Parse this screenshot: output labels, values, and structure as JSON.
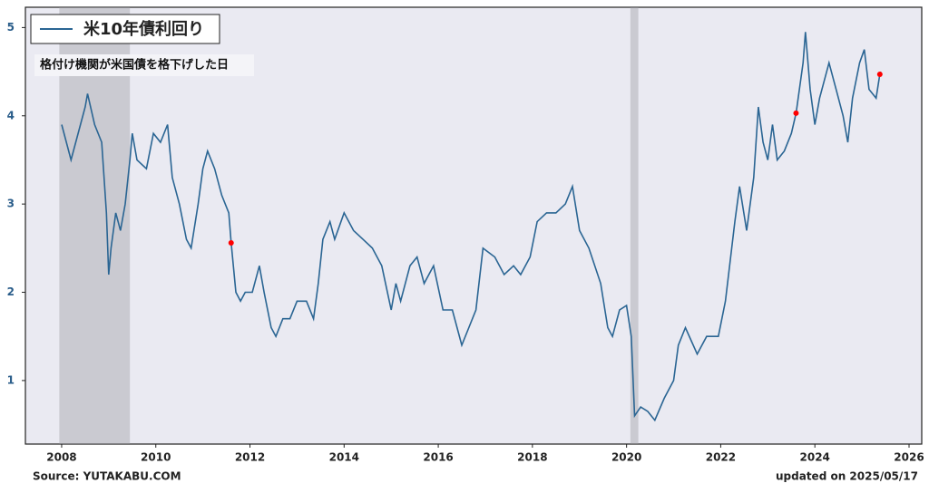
{
  "chart_data": {
    "type": "line",
    "legend": "米10年債利回り",
    "annotation": "格付け機関が米国債を格下げした日",
    "source": "Source: YUTAKABU.COM",
    "updated": "updated on 2025/05/17",
    "xlim": [
      2007.23,
      2026.27
    ],
    "xticks": [
      2008,
      2010,
      2012,
      2014,
      2016,
      2018,
      2020,
      2022,
      2024,
      2026
    ],
    "ylim": [
      0.28,
      5.23
    ],
    "yticks": [
      1,
      2,
      3,
      4,
      5
    ],
    "color": "#2a6593",
    "shaded_ranges": [
      [
        2007.95,
        2009.45
      ],
      [
        2020.08,
        2020.25
      ]
    ],
    "x": [
      2008.0,
      2008.2,
      2008.4,
      2008.5,
      2008.55,
      2008.7,
      2008.85,
      2008.95,
      2009.0,
      2009.05,
      2009.15,
      2009.25,
      2009.35,
      2009.45,
      2009.5,
      2009.6,
      2009.8,
      2009.95,
      2010.1,
      2010.25,
      2010.35,
      2010.5,
      2010.65,
      2010.75,
      2010.9,
      2011.0,
      2011.1,
      2011.25,
      2011.4,
      2011.55,
      2011.6,
      2011.7,
      2011.8,
      2011.9,
      2012.05,
      2012.2,
      2012.3,
      2012.45,
      2012.55,
      2012.7,
      2012.85,
      2013.0,
      2013.2,
      2013.35,
      2013.45,
      2013.55,
      2013.7,
      2013.8,
      2014.0,
      2014.2,
      2014.4,
      2014.6,
      2014.8,
      2015.0,
      2015.1,
      2015.2,
      2015.4,
      2015.55,
      2015.7,
      2015.9,
      2016.1,
      2016.3,
      2016.5,
      2016.65,
      2016.8,
      2016.95,
      2017.2,
      2017.4,
      2017.6,
      2017.75,
      2017.95,
      2018.1,
      2018.3,
      2018.5,
      2018.7,
      2018.85,
      2019.0,
      2019.2,
      2019.45,
      2019.6,
      2019.7,
      2019.85,
      2020.0,
      2020.1,
      2020.17,
      2020.3,
      2020.45,
      2020.6,
      2020.8,
      2021.0,
      2021.1,
      2021.25,
      2021.5,
      2021.7,
      2021.95,
      2022.1,
      2022.3,
      2022.4,
      2022.55,
      2022.7,
      2022.8,
      2022.9,
      2023.0,
      2023.1,
      2023.2,
      2023.35,
      2023.5,
      2023.6,
      2023.75,
      2023.8,
      2023.9,
      2024.0,
      2024.1,
      2024.3,
      2024.45,
      2024.6,
      2024.7,
      2024.8,
      2024.95,
      2025.05,
      2025.15,
      2025.3,
      2025.38,
      2025.4
    ],
    "values": [
      3.9,
      3.5,
      3.9,
      4.1,
      4.25,
      3.9,
      3.7,
      2.9,
      2.2,
      2.5,
      2.9,
      2.7,
      3.0,
      3.5,
      3.8,
      3.5,
      3.4,
      3.8,
      3.7,
      3.9,
      3.3,
      3.0,
      2.6,
      2.5,
      3.0,
      3.4,
      3.6,
      3.4,
      3.1,
      2.9,
      2.56,
      2.0,
      1.9,
      2.0,
      2.0,
      2.3,
      2.0,
      1.6,
      1.5,
      1.7,
      1.7,
      1.9,
      1.9,
      1.7,
      2.1,
      2.6,
      2.8,
      2.6,
      2.9,
      2.7,
      2.6,
      2.5,
      2.3,
      1.8,
      2.1,
      1.9,
      2.3,
      2.4,
      2.1,
      2.3,
      1.8,
      1.8,
      1.4,
      1.6,
      1.8,
      2.5,
      2.4,
      2.2,
      2.3,
      2.2,
      2.4,
      2.8,
      2.9,
      2.9,
      3.0,
      3.2,
      2.7,
      2.5,
      2.1,
      1.6,
      1.5,
      1.8,
      1.85,
      1.5,
      0.6,
      0.7,
      0.65,
      0.55,
      0.8,
      1.0,
      1.4,
      1.6,
      1.3,
      1.5,
      1.5,
      1.9,
      2.8,
      3.2,
      2.7,
      3.3,
      4.1,
      3.7,
      3.5,
      3.9,
      3.5,
      3.6,
      3.8,
      4.03,
      4.6,
      4.95,
      4.3,
      3.9,
      4.2,
      4.6,
      4.3,
      4.0,
      3.7,
      4.2,
      4.6,
      4.75,
      4.3,
      4.2,
      4.47,
      4.5
    ],
    "markers": {
      "color": "#ff0000",
      "x": [
        2011.6,
        2023.6,
        2025.38
      ],
      "values": [
        2.56,
        4.03,
        4.47
      ]
    }
  }
}
